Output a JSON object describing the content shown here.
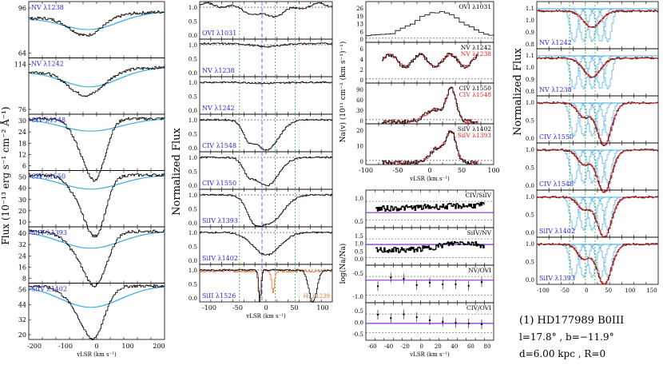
{
  "colors": {
    "data": "#000000",
    "continuum": "#3aa8e0",
    "model_red": "#e02020",
    "ion_label": "#2a2adb",
    "vline_green": "#33b033",
    "vline_blue": "#5566ee",
    "purple_line": "#8a2be2",
    "orange": "#e87030"
  },
  "panel1": {
    "ylabel": "Flux (10⁻¹³ erg s⁻¹ cm⁻² Å⁻¹)",
    "xlabel": "vLSR (km s⁻¹)",
    "xticks": [
      "-200",
      "-100",
      "0",
      "100",
      "200"
    ],
    "rows": [
      {
        "ion": "NV λ1238",
        "yticks": [
          "96",
          "64"
        ]
      },
      {
        "ion": "NV λ1242",
        "yticks": [
          "114",
          "76"
        ]
      },
      {
        "ion": "CIV λ1548",
        "yticks": [
          "30",
          "24",
          "18",
          "12",
          "6"
        ]
      },
      {
        "ion": "CIV λ1550",
        "yticks": [
          "50",
          "40",
          "30",
          "20",
          "10"
        ]
      },
      {
        "ion": "SiIV λ1393",
        "yticks": [
          "40",
          "32",
          "24",
          "16",
          "8"
        ]
      },
      {
        "ion": "SiIV λ1402",
        "yticks": [
          "56",
          "44",
          "32",
          "20"
        ]
      }
    ]
  },
  "panel2": {
    "ylabel": "Normalized Flux",
    "xlabel": "vLSR (km s⁻¹)",
    "xticks": [
      "-100",
      "-50",
      "0",
      "50",
      "100"
    ],
    "yticks": [
      "1.0",
      "0.5",
      "0.0"
    ],
    "rows": [
      {
        "ion": "OVI λ1031"
      },
      {
        "ion": "NV λ1238"
      },
      {
        "ion": "NV λ1242"
      },
      {
        "ion": "CIV λ1548"
      },
      {
        "ion": "CIV λ1550"
      },
      {
        "ion": "SiIV λ1393"
      },
      {
        "ion": "SiIV λ1402"
      },
      {
        "ion": "SiII λ1526"
      }
    ],
    "extra_label": "H₂ λ1239"
  },
  "panel3": {
    "ylabel": "Na(v) (10¹¹ cm⁻² (km s⁻¹)⁻¹)",
    "xlabel": "vLSR (km s⁻¹)",
    "xticks": [
      "-100",
      "-50",
      "0",
      "50",
      "100"
    ],
    "rows": [
      {
        "labels": [
          "OVI λ1031"
        ],
        "yticks": [
          "26",
          "19",
          "13",
          "6",
          "0"
        ]
      },
      {
        "labels": [
          "NV λ1242",
          "NV λ1238"
        ],
        "yticks": [
          "6",
          "4",
          "2",
          "0"
        ]
      },
      {
        "labels": [
          "CIV λ1550",
          "CIV λ1548"
        ],
        "yticks": [
          "90",
          "60",
          "30",
          "0"
        ]
      },
      {
        "labels": [
          "SiIV λ1402",
          "SiIV λ1393"
        ],
        "yticks": [
          "20",
          "10",
          "0"
        ]
      }
    ]
  },
  "panel4": {
    "ylabel": "log(Na/Na)",
    "xlabel": "vLSR (km s⁻¹)",
    "xticks": [
      "-60",
      "-40",
      "-20",
      "0",
      "20",
      "40",
      "60",
      "80"
    ],
    "rows": [
      {
        "label": "CIV/SiIV",
        "yticks": [
          "1.0",
          "0.5"
        ]
      },
      {
        "label": "SiIV/NV",
        "yticks": [
          "1.5",
          "1.0",
          "0.5",
          "0.0"
        ]
      },
      {
        "label": "NV/OVI",
        "yticks": [
          "-0.5",
          "-1.0"
        ]
      },
      {
        "label": "CIV/OVI",
        "yticks": [
          "0.5",
          "0.0",
          "-0.5"
        ]
      }
    ]
  },
  "panel5": {
    "ylabel": "Normalized Flux",
    "xticks": [
      "-100",
      "-50",
      "0",
      "50",
      "100",
      "150"
    ],
    "rows": [
      {
        "ion": "NV λ1242",
        "yticks": [
          "1.1",
          "1.0",
          "0.9",
          "0.8"
        ]
      },
      {
        "ion": "NV λ1238",
        "yticks": [
          "1.1",
          "1.0",
          "0.9",
          "0.8"
        ]
      },
      {
        "ion": "CIV λ1550",
        "yticks": [
          "1.0",
          "0.5",
          "0.0"
        ]
      },
      {
        "ion": "CIV λ1548",
        "yticks": [
          "1.0",
          "0.5",
          "0.0"
        ]
      },
      {
        "ion": "SiIV λ1402",
        "yticks": [
          "1.0",
          "0.5",
          "0.0"
        ]
      },
      {
        "ion": "SiIV λ1393",
        "yticks": [
          "1.0",
          "0.5",
          "0.0"
        ]
      }
    ]
  },
  "info": {
    "star": "(1) HD177989 B0III",
    "coords": "l=17.8° , b=−11.9°",
    "dist": "d=6.00 kpc , R=0"
  }
}
